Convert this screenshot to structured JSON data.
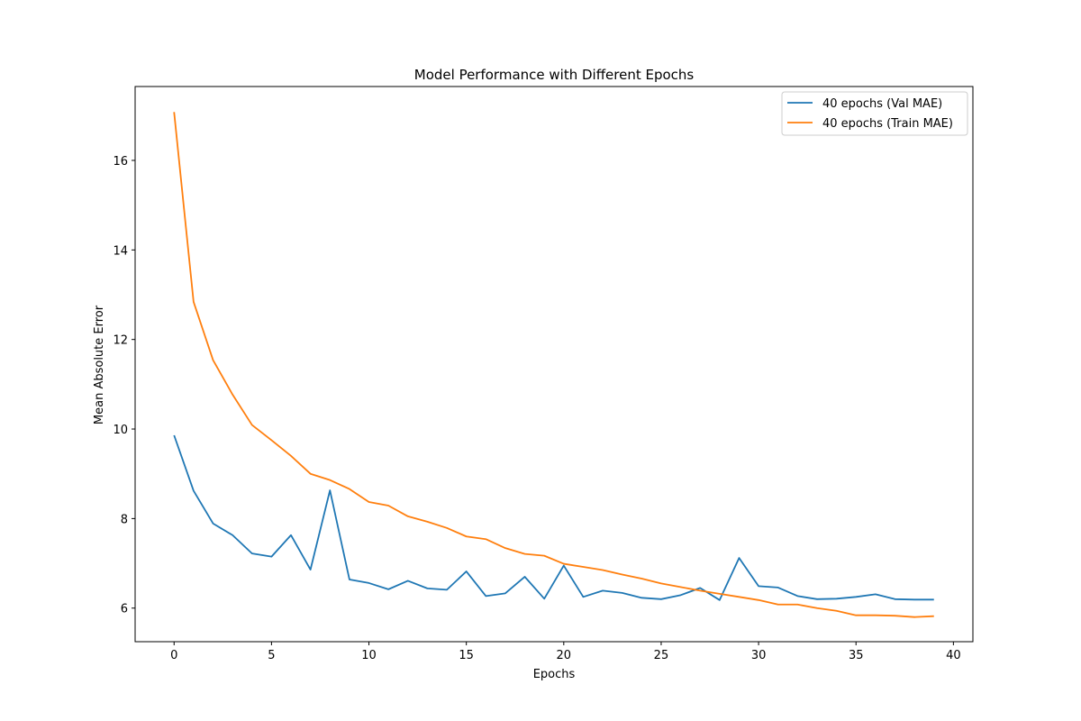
{
  "chart_data": {
    "type": "line",
    "title": "Model Performance with Different Epochs",
    "xlabel": "Epochs",
    "ylabel": "Mean Absolute Error",
    "xlim": [
      -2,
      41
    ],
    "ylim": [
      5.25,
      17.65
    ],
    "xticks": [
      0,
      5,
      10,
      15,
      20,
      25,
      30,
      35,
      40
    ],
    "yticks": [
      6,
      8,
      10,
      12,
      14,
      16
    ],
    "grid": false,
    "legend_position": "top-right",
    "x": [
      0,
      1,
      2,
      3,
      4,
      5,
      6,
      7,
      8,
      9,
      10,
      11,
      12,
      13,
      14,
      15,
      16,
      17,
      18,
      19,
      20,
      21,
      22,
      23,
      24,
      25,
      26,
      27,
      28,
      29,
      30,
      31,
      32,
      33,
      34,
      35,
      36,
      37,
      38,
      39
    ],
    "series": [
      {
        "name": "40 epochs (Val MAE)",
        "color": "#1f77b4",
        "values": [
          9.86,
          8.62,
          7.89,
          7.63,
          7.22,
          7.15,
          7.63,
          6.86,
          8.63,
          6.64,
          6.56,
          6.42,
          6.61,
          6.44,
          6.41,
          6.82,
          6.27,
          6.33,
          6.7,
          6.21,
          6.95,
          6.25,
          6.39,
          6.34,
          6.23,
          6.2,
          6.29,
          6.45,
          6.18,
          7.12,
          6.49,
          6.46,
          6.27,
          6.2,
          6.21,
          6.25,
          6.31,
          6.2,
          6.19,
          6.19
        ]
      },
      {
        "name": "40 epochs (Train MAE)",
        "color": "#ff7f0e",
        "values": [
          17.08,
          12.84,
          11.54,
          10.77,
          10.09,
          9.75,
          9.4,
          9.0,
          8.86,
          8.66,
          8.37,
          8.29,
          8.05,
          7.93,
          7.79,
          7.6,
          7.54,
          7.34,
          7.21,
          7.17,
          6.99,
          6.92,
          6.85,
          6.75,
          6.66,
          6.55,
          6.47,
          6.39,
          6.32,
          6.25,
          6.18,
          6.08,
          6.08,
          6.0,
          5.94,
          5.84,
          5.84,
          5.83,
          5.8,
          5.82
        ]
      }
    ]
  }
}
